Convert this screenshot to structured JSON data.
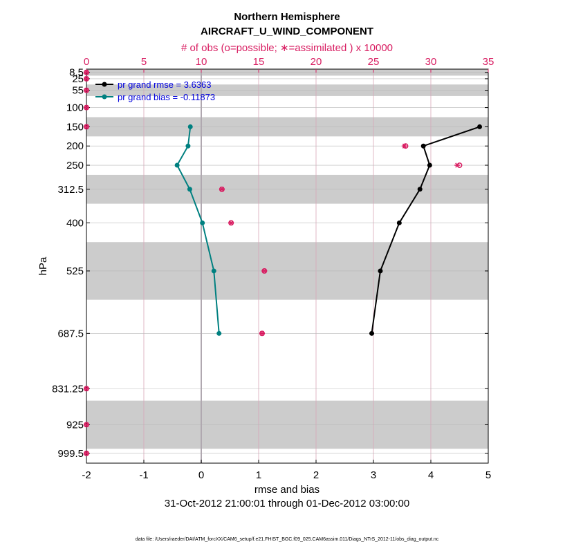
{
  "chart_data": {
    "type": "line",
    "title": "Northern Hemisphere",
    "subtitle": "AIRCRAFT_U_WIND_COMPONENT",
    "top_axis_label": "# of obs (o=possible; ∗=assimilated ) x 10000",
    "xlabel": "rmse and bias",
    "ylabel": "hPa",
    "date_range": "31-Oct-2012 21:00:01 through 01-Dec-2012 03:00:00",
    "footnote": "data file: /Users/raeder/DAI/ATM_forcXX/CAM6_setup/f.e21.FHIST_BGC.f09_025.CAM6assim.011/Diags_NTrS_2012-11/obs_diag_output.nc",
    "xlim": [
      -2,
      5
    ],
    "xticks": [
      -2,
      -1,
      0,
      1,
      2,
      3,
      4,
      5
    ],
    "xtick_labels": [
      "-2",
      "-1",
      "0",
      "1",
      "2",
      "3",
      "4",
      "5"
    ],
    "top_xlim": [
      0,
      35
    ],
    "top_xticks": [
      0,
      5,
      10,
      15,
      20,
      25,
      30,
      35
    ],
    "top_xtick_labels": [
      "0",
      "5",
      "10",
      "15",
      "20",
      "25",
      "30",
      "35"
    ],
    "ylim": [
      1025,
      0
    ],
    "levels": [
      8.5,
      25,
      55,
      100,
      150,
      200,
      250,
      312.5,
      400,
      525,
      687.5,
      831.25,
      925,
      999.5
    ],
    "level_labels": [
      "8.5",
      "25",
      "55",
      "100",
      "150",
      "200",
      "250",
      "312.5",
      "400",
      "525",
      "687.5",
      "831.25",
      "925",
      "999.5"
    ],
    "level_bands": [
      [
        0,
        17
      ],
      [
        40,
        70
      ],
      [
        125,
        175
      ],
      [
        275,
        350
      ],
      [
        450,
        600
      ],
      [
        862.5,
        987.5
      ]
    ],
    "series": [
      {
        "name": "pr grand rmse = 3.6363",
        "color": "#000000",
        "levels": [
          150,
          200,
          250,
          312.5,
          400,
          525,
          687.5
        ],
        "values": [
          4.85,
          3.87,
          3.98,
          3.81,
          3.45,
          3.12,
          2.97
        ]
      },
      {
        "name": "pr grand bias = -0.11873",
        "color": "#008080",
        "levels": [
          150,
          200,
          250,
          312.5,
          400,
          525,
          687.5
        ],
        "values": [
          -0.19,
          -0.23,
          -0.42,
          -0.2,
          0.02,
          0.22,
          0.31
        ]
      }
    ],
    "obs_count": {
      "color": "#D81B60",
      "levels": [
        8.5,
        25,
        55,
        100,
        150,
        200,
        250,
        312.5,
        400,
        525,
        687.5,
        831.25,
        925,
        999.5
      ],
      "possible": [
        0,
        0,
        0,
        0,
        0,
        27.8,
        32.5,
        11.8,
        12.6,
        15.5,
        15.3,
        0,
        0,
        0
      ],
      "assimilated": [
        0,
        0,
        0,
        0,
        0,
        27.7,
        32.3,
        11.8,
        12.6,
        15.5,
        15.3,
        0,
        0,
        0
      ]
    }
  }
}
